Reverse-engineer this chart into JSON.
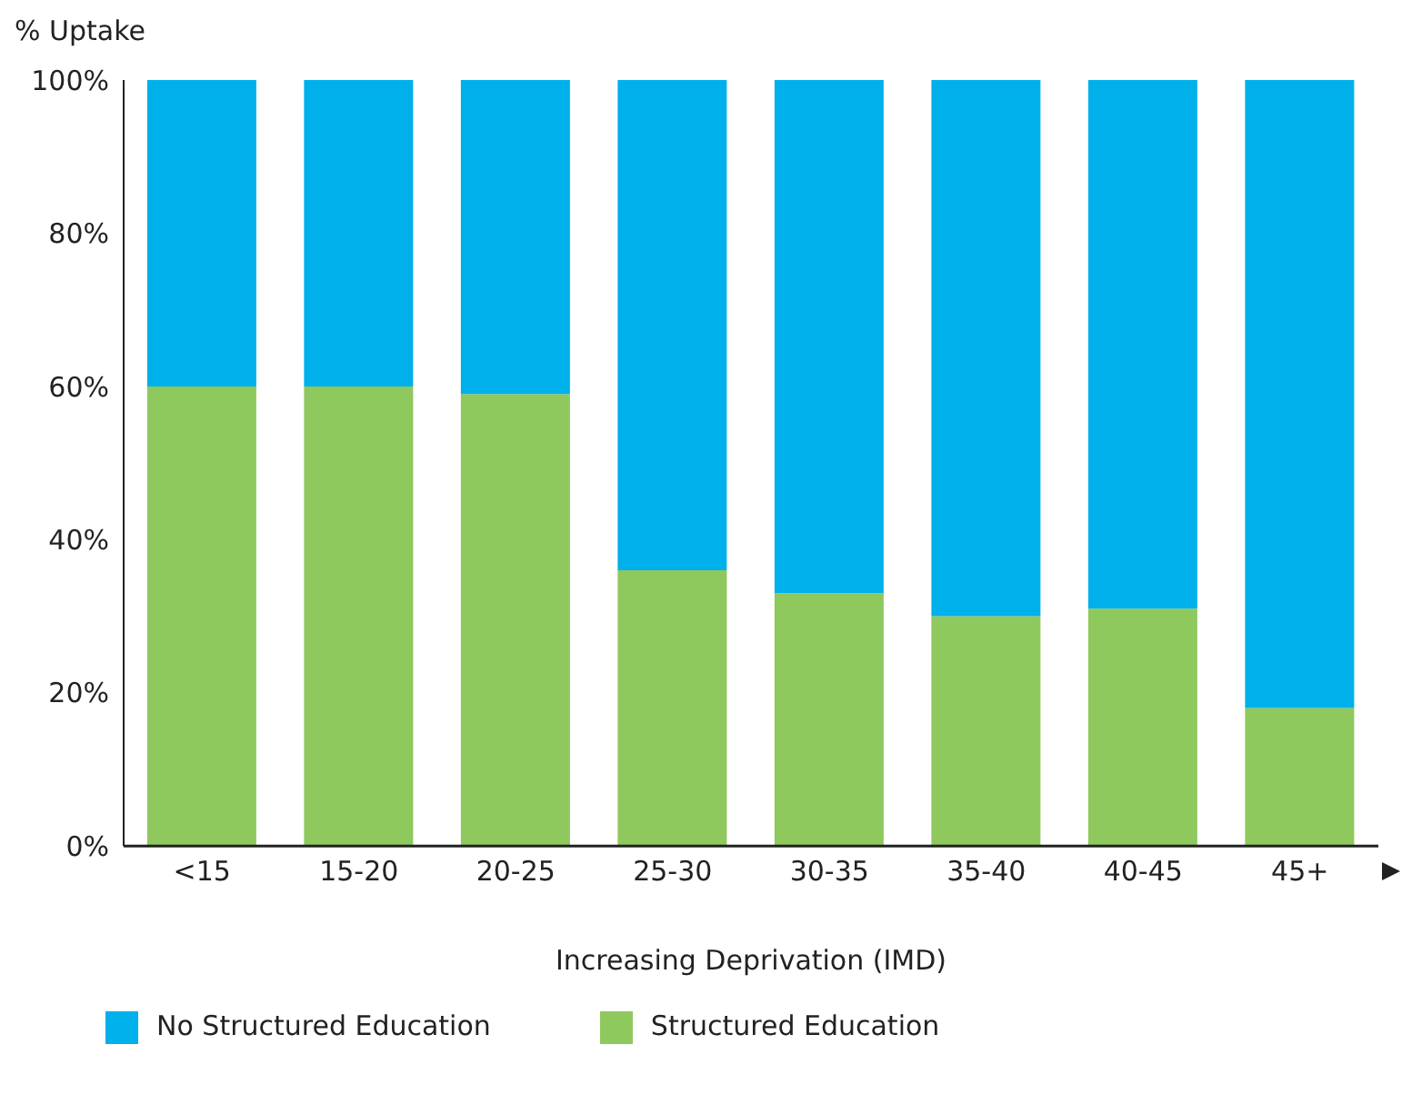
{
  "chart_data": {
    "type": "bar",
    "ylabel": "% Uptake",
    "xlabel": "Increasing Deprivation (IMD)",
    "categories": [
      "<15",
      "15-20",
      "20-25",
      "25-30",
      "30-35",
      "35-40",
      "40-45",
      "45+"
    ],
    "series": [
      {
        "name": "Structured Education",
        "color": "#8fc85c",
        "values": [
          60,
          60,
          59,
          36,
          33,
          30,
          31,
          18
        ]
      },
      {
        "name": "No Structured Education",
        "color": "#00b0ea",
        "values": [
          40,
          40,
          41,
          64,
          67,
          70,
          69,
          82
        ]
      }
    ],
    "stacked": true,
    "ylim": [
      0,
      100
    ],
    "yticks": [
      {
        "value": 0,
        "label": "0%"
      },
      {
        "value": 20,
        "label": "20%"
      },
      {
        "value": 40,
        "label": "40%"
      },
      {
        "value": 60,
        "label": "60%"
      },
      {
        "value": 80,
        "label": "80%"
      },
      {
        "value": 100,
        "label": "100%"
      }
    ],
    "grid": false,
    "legend": "bottom left"
  }
}
